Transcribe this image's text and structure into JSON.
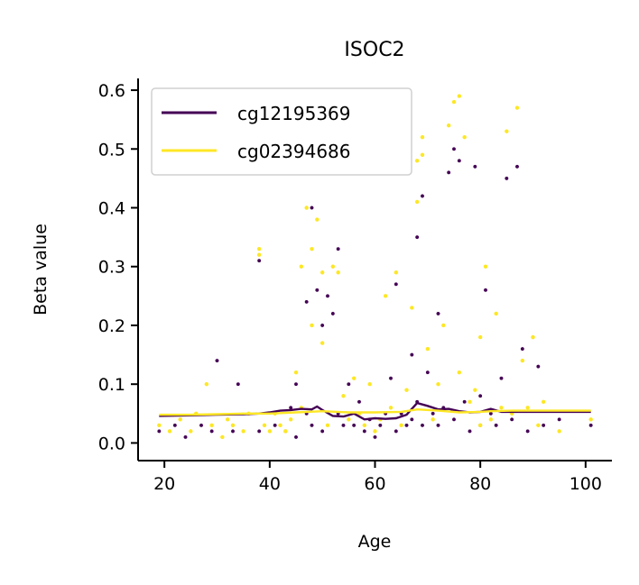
{
  "chart_data": {
    "type": "scatter",
    "title": "ISOC2",
    "xlabel": "Age",
    "ylabel": "Beta value",
    "xlim": [
      15,
      105
    ],
    "ylim": [
      -0.03,
      0.62
    ],
    "xticks": [
      "20",
      "40",
      "60",
      "80",
      "100"
    ],
    "yticks": [
      "0.0",
      "0.1",
      "0.2",
      "0.3",
      "0.4",
      "0.5",
      "0.6"
    ],
    "grid": false,
    "legend_position": "top-left",
    "series": [
      {
        "name": "cg12195369",
        "color": "#440154",
        "trend": [
          [
            19,
            0.046
          ],
          [
            25,
            0.047
          ],
          [
            30,
            0.048
          ],
          [
            35,
            0.049
          ],
          [
            38,
            0.05
          ],
          [
            40,
            0.052
          ],
          [
            42,
            0.055
          ],
          [
            44,
            0.056
          ],
          [
            46,
            0.058
          ],
          [
            48,
            0.057
          ],
          [
            49,
            0.062
          ],
          [
            50,
            0.056
          ],
          [
            52,
            0.046
          ],
          [
            54,
            0.045
          ],
          [
            56,
            0.05
          ],
          [
            58,
            0.04
          ],
          [
            60,
            0.042
          ],
          [
            62,
            0.041
          ],
          [
            64,
            0.042
          ],
          [
            66,
            0.048
          ],
          [
            68,
            0.068
          ],
          [
            70,
            0.063
          ],
          [
            72,
            0.057
          ],
          [
            74,
            0.058
          ],
          [
            76,
            0.054
          ],
          [
            78,
            0.052
          ],
          [
            80,
            0.053
          ],
          [
            82,
            0.058
          ],
          [
            84,
            0.053
          ],
          [
            90,
            0.053
          ],
          [
            101,
            0.053
          ]
        ],
        "points": [
          [
            19,
            0.02
          ],
          [
            22,
            0.03
          ],
          [
            24,
            0.01
          ],
          [
            27,
            0.03
          ],
          [
            29,
            0.02
          ],
          [
            30,
            0.14
          ],
          [
            33,
            0.02
          ],
          [
            34,
            0.1
          ],
          [
            38,
            0.31
          ],
          [
            38,
            0.02
          ],
          [
            41,
            0.03
          ],
          [
            43,
            0.02
          ],
          [
            44,
            0.06
          ],
          [
            45,
            0.1
          ],
          [
            45,
            0.01
          ],
          [
            47,
            0.24
          ],
          [
            47,
            0.05
          ],
          [
            48,
            0.4
          ],
          [
            48,
            0.03
          ],
          [
            49,
            0.26
          ],
          [
            50,
            0.2
          ],
          [
            50,
            0.02
          ],
          [
            51,
            0.25
          ],
          [
            52,
            0.22
          ],
          [
            53,
            0.33
          ],
          [
            53,
            0.05
          ],
          [
            54,
            0.03
          ],
          [
            55,
            0.1
          ],
          [
            56,
            0.03
          ],
          [
            57,
            0.07
          ],
          [
            58,
            0.02
          ],
          [
            59,
            0.04
          ],
          [
            60,
            0.01
          ],
          [
            61,
            0.03
          ],
          [
            62,
            0.05
          ],
          [
            63,
            0.11
          ],
          [
            64,
            0.27
          ],
          [
            64,
            0.02
          ],
          [
            65,
            0.05
          ],
          [
            66,
            0.03
          ],
          [
            67,
            0.15
          ],
          [
            67,
            0.04
          ],
          [
            68,
            0.35
          ],
          [
            68,
            0.07
          ],
          [
            69,
            0.42
          ],
          [
            69,
            0.03
          ],
          [
            70,
            0.12
          ],
          [
            71,
            0.05
          ],
          [
            72,
            0.22
          ],
          [
            72,
            0.03
          ],
          [
            73,
            0.06
          ],
          [
            74,
            0.46
          ],
          [
            75,
            0.5
          ],
          [
            75,
            0.04
          ],
          [
            76,
            0.48
          ],
          [
            77,
            0.07
          ],
          [
            78,
            0.02
          ],
          [
            79,
            0.47
          ],
          [
            80,
            0.08
          ],
          [
            80,
            0.03
          ],
          [
            81,
            0.26
          ],
          [
            82,
            0.05
          ],
          [
            83,
            0.03
          ],
          [
            84,
            0.11
          ],
          [
            85,
            0.45
          ],
          [
            86,
            0.04
          ],
          [
            87,
            0.47
          ],
          [
            88,
            0.16
          ],
          [
            89,
            0.02
          ],
          [
            90,
            0.18
          ],
          [
            91,
            0.13
          ],
          [
            92,
            0.03
          ],
          [
            95,
            0.04
          ],
          [
            101,
            0.03
          ]
        ]
      },
      {
        "name": "cg02394686",
        "color": "#fde725",
        "trend": [
          [
            19,
            0.048
          ],
          [
            25,
            0.048
          ],
          [
            30,
            0.049
          ],
          [
            35,
            0.05
          ],
          [
            40,
            0.05
          ],
          [
            45,
            0.052
          ],
          [
            50,
            0.054
          ],
          [
            55,
            0.052
          ],
          [
            60,
            0.052
          ],
          [
            65,
            0.053
          ],
          [
            68,
            0.057
          ],
          [
            72,
            0.055
          ],
          [
            76,
            0.052
          ],
          [
            80,
            0.053
          ],
          [
            82,
            0.054
          ],
          [
            86,
            0.055
          ],
          [
            90,
            0.055
          ],
          [
            101,
            0.055
          ]
        ],
        "points": [
          [
            19,
            0.03
          ],
          [
            21,
            0.02
          ],
          [
            23,
            0.04
          ],
          [
            25,
            0.02
          ],
          [
            26,
            0.05
          ],
          [
            28,
            0.1
          ],
          [
            29,
            0.03
          ],
          [
            31,
            0.01
          ],
          [
            32,
            0.04
          ],
          [
            33,
            0.03
          ],
          [
            35,
            0.02
          ],
          [
            36,
            0.05
          ],
          [
            38,
            0.33
          ],
          [
            38,
            0.32
          ],
          [
            39,
            0.03
          ],
          [
            40,
            0.02
          ],
          [
            41,
            0.05
          ],
          [
            42,
            0.03
          ],
          [
            43,
            0.02
          ],
          [
            44,
            0.04
          ],
          [
            45,
            0.12
          ],
          [
            46,
            0.06
          ],
          [
            46,
            0.3
          ],
          [
            47,
            0.4
          ],
          [
            48,
            0.33
          ],
          [
            48,
            0.2
          ],
          [
            49,
            0.38
          ],
          [
            50,
            0.17
          ],
          [
            50,
            0.29
          ],
          [
            51,
            0.03
          ],
          [
            52,
            0.3
          ],
          [
            53,
            0.29
          ],
          [
            54,
            0.08
          ],
          [
            55,
            0.04
          ],
          [
            56,
            0.11
          ],
          [
            57,
            0.05
          ],
          [
            58,
            0.03
          ],
          [
            59,
            0.1
          ],
          [
            60,
            0.02
          ],
          [
            61,
            0.04
          ],
          [
            62,
            0.25
          ],
          [
            63,
            0.06
          ],
          [
            64,
            0.29
          ],
          [
            65,
            0.03
          ],
          [
            66,
            0.09
          ],
          [
            67,
            0.23
          ],
          [
            68,
            0.41
          ],
          [
            68,
            0.48
          ],
          [
            69,
            0.49
          ],
          [
            69,
            0.52
          ],
          [
            70,
            0.16
          ],
          [
            71,
            0.04
          ],
          [
            72,
            0.1
          ],
          [
            73,
            0.2
          ],
          [
            74,
            0.54
          ],
          [
            75,
            0.58
          ],
          [
            76,
            0.59
          ],
          [
            76,
            0.12
          ],
          [
            77,
            0.52
          ],
          [
            78,
            0.07
          ],
          [
            79,
            0.09
          ],
          [
            80,
            0.18
          ],
          [
            80,
            0.03
          ],
          [
            81,
            0.3
          ],
          [
            82,
            0.04
          ],
          [
            83,
            0.22
          ],
          [
            84,
            0.06
          ],
          [
            85,
            0.53
          ],
          [
            86,
            0.05
          ],
          [
            87,
            0.57
          ],
          [
            88,
            0.14
          ],
          [
            89,
            0.06
          ],
          [
            90,
            0.18
          ],
          [
            91,
            0.03
          ],
          [
            92,
            0.07
          ],
          [
            95,
            0.02
          ],
          [
            101,
            0.04
          ]
        ]
      }
    ]
  }
}
